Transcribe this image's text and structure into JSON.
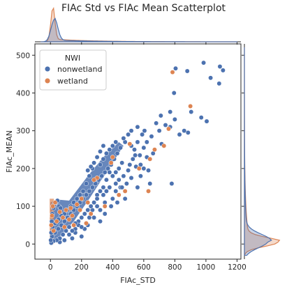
{
  "chart_data": {
    "type": "scatter",
    "title": "FIAc Std vs FIAc Mean Scatterplot",
    "xlabel": "FIAc_STD",
    "ylabel": "FIAc_MEAN",
    "xlim": [
      -100,
      1225
    ],
    "ylim": [
      -40,
      530
    ],
    "xticks": [
      0,
      200,
      400,
      600,
      800,
      1000,
      1200
    ],
    "yticks": [
      0,
      100,
      200,
      300,
      400,
      500
    ],
    "legend": {
      "title": "NWI",
      "placement": "top-left",
      "entries": [
        "nonwetland",
        "wetland"
      ]
    },
    "colors": {
      "nonwetland": "#4c72b0",
      "wetland": "#dd8452"
    },
    "series": [
      {
        "name": "nonwetland",
        "points": [
          [
            1090,
            470
          ],
          [
            985,
            480
          ],
          [
            1110,
            460
          ],
          [
            1030,
            440
          ],
          [
            1085,
            425
          ],
          [
            880,
            458
          ],
          [
            805,
            465
          ],
          [
            795,
            400
          ],
          [
            905,
            350
          ],
          [
            970,
            335
          ],
          [
            800,
            330
          ],
          [
            710,
            340
          ],
          [
            860,
            300
          ],
          [
            885,
            295
          ],
          [
            1005,
            325
          ],
          [
            680,
            320
          ],
          [
            740,
            315
          ],
          [
            770,
            310
          ],
          [
            830,
            290
          ],
          [
            700,
            300
          ],
          [
            605,
            300
          ],
          [
            650,
            285
          ],
          [
            715,
            265
          ],
          [
            770,
            350
          ],
          [
            780,
            160
          ],
          [
            640,
            160
          ],
          [
            580,
            180
          ],
          [
            560,
            150
          ],
          [
            520,
            175
          ],
          [
            490,
            160
          ],
          [
            450,
            150
          ],
          [
            480,
            120
          ],
          [
            430,
            110
          ],
          [
            420,
            140
          ],
          [
            510,
            210
          ],
          [
            545,
            235
          ],
          [
            600,
            255
          ],
          [
            575,
            235
          ],
          [
            530,
            225
          ],
          [
            500,
            195
          ],
          [
            470,
            180
          ],
          [
            460,
            150
          ],
          [
            420,
            160
          ],
          [
            400,
            120
          ],
          [
            390,
            100
          ],
          [
            350,
            110
          ],
          [
            350,
            80
          ],
          [
            320,
            60
          ],
          [
            300,
            130
          ],
          [
            300,
            100
          ],
          [
            270,
            90
          ],
          [
            250,
            70
          ],
          [
            220,
            40
          ],
          [
            200,
            20
          ],
          [
            180,
            60
          ],
          [
            160,
            30
          ],
          [
            140,
            15
          ],
          [
            120,
            25
          ],
          [
            90,
            10
          ],
          [
            60,
            5
          ],
          [
            480,
            270
          ],
          [
            450,
            255
          ],
          [
            430,
            240
          ],
          [
            410,
            225
          ],
          [
            390,
            210
          ],
          [
            370,
            200
          ],
          [
            350,
            190
          ],
          [
            330,
            180
          ],
          [
            310,
            170
          ],
          [
            290,
            160
          ],
          [
            270,
            150
          ],
          [
            250,
            140
          ],
          [
            230,
            130
          ],
          [
            210,
            120
          ],
          [
            190,
            110
          ],
          [
            170,
            100
          ],
          [
            150,
            90
          ],
          [
            130,
            80
          ],
          [
            110,
            70
          ],
          [
            90,
            60
          ],
          [
            70,
            50
          ],
          [
            50,
            40
          ],
          [
            30,
            30
          ],
          [
            10,
            20
          ],
          [
            520,
            260
          ],
          [
            540,
            250
          ],
          [
            560,
            270
          ],
          [
            440,
            200
          ],
          [
            460,
            215
          ],
          [
            380,
            190
          ],
          [
            360,
            170
          ],
          [
            340,
            150
          ],
          [
            320,
            140
          ],
          [
            300,
            120
          ],
          [
            280,
            110
          ],
          [
            260,
            100
          ],
          [
            240,
            90
          ],
          [
            220,
            80
          ],
          [
            200,
            70
          ],
          [
            180,
            50
          ],
          [
            160,
            40
          ],
          [
            140,
            35
          ],
          [
            580,
            210
          ],
          [
            620,
            230
          ],
          [
            660,
            240
          ],
          [
            600,
            200
          ],
          [
            630,
            195
          ],
          [
            550,
            205
          ],
          [
            400,
            180
          ],
          [
            420,
            190
          ],
          [
            440,
            170
          ],
          [
            380,
            150
          ],
          [
            360,
            140
          ],
          [
            340,
            130
          ],
          [
            320,
            90
          ],
          [
            280,
            70
          ],
          [
            240,
            50
          ],
          [
            200,
            45
          ],
          [
            160,
            55
          ],
          [
            120,
            45
          ],
          [
            100,
            35
          ],
          [
            80,
            25
          ],
          [
            60,
            15
          ],
          [
            40,
            10
          ],
          [
            20,
            8
          ],
          [
            5,
            3
          ],
          [
            250,
            180
          ],
          [
            270,
            200
          ],
          [
            230,
            160
          ],
          [
            210,
            140
          ],
          [
            190,
            130
          ],
          [
            170,
            120
          ],
          [
            150,
            110
          ],
          [
            130,
            100
          ],
          [
            110,
            90
          ],
          [
            90,
            80
          ],
          [
            70,
            75
          ],
          [
            50,
            65
          ],
          [
            30,
            55
          ],
          [
            15,
            45
          ],
          [
            5,
            30
          ],
          [
            2,
            10
          ],
          [
            8,
            60
          ],
          [
            12,
            80
          ],
          [
            20,
            95
          ],
          [
            25,
            105
          ],
          [
            35,
            110
          ],
          [
            45,
            115
          ],
          [
            55,
            100
          ],
          [
            65,
            95
          ],
          [
            300,
            230
          ],
          [
            320,
            245
          ],
          [
            340,
            260
          ],
          [
            280,
            215
          ],
          [
            260,
            205
          ],
          [
            240,
            195
          ],
          [
            420,
            270
          ],
          [
            400,
            260
          ],
          [
            380,
            250
          ],
          [
            360,
            240
          ],
          [
            340,
            225
          ],
          [
            320,
            210
          ],
          [
            500,
            290
          ],
          [
            470,
            280
          ],
          [
            520,
            300
          ],
          [
            560,
            310
          ],
          [
            590,
            290
          ],
          [
            620,
            270
          ]
        ]
      },
      {
        "name": "wetland",
        "points": [
          [
            785,
            455
          ],
          [
            900,
            365
          ],
          [
            760,
            305
          ],
          [
            730,
            260
          ],
          [
            670,
            250
          ],
          [
            640,
            225
          ],
          [
            570,
            200
          ],
          [
            630,
            140
          ],
          [
            510,
            265
          ],
          [
            390,
            215
          ],
          [
            300,
            175
          ],
          [
            200,
            120
          ],
          [
            170,
            105
          ],
          [
            130,
            95
          ],
          [
            100,
            90
          ],
          [
            60,
            85
          ],
          [
            30,
            110
          ],
          [
            15,
            100
          ],
          [
            10,
            75
          ],
          [
            5,
            50
          ],
          [
            20,
            35
          ],
          [
            40,
            60
          ],
          [
            80,
            70
          ],
          [
            120,
            65
          ],
          [
            150,
            50
          ],
          [
            230,
            55
          ],
          [
            260,
            80
          ],
          [
            350,
            100
          ],
          [
            440,
            130
          ],
          [
            480,
            140
          ],
          [
            400,
            230
          ],
          [
            280,
            170
          ],
          [
            240,
            110
          ],
          [
            190,
            90
          ],
          [
            140,
            75
          ],
          [
            90,
            45
          ]
        ]
      }
    ]
  }
}
